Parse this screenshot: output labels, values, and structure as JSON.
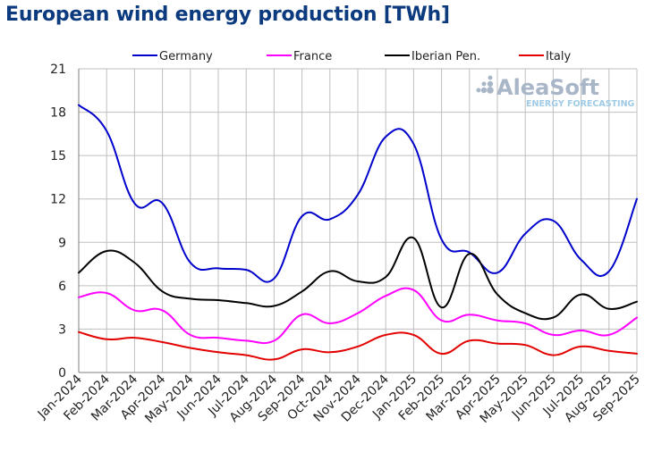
{
  "chart_data": {
    "type": "line",
    "title": "European wind energy production [TWh]",
    "xlabel": "",
    "ylabel": "",
    "ylim": [
      0,
      21
    ],
    "yticks": [
      0,
      3,
      6,
      9,
      12,
      15,
      18,
      21
    ],
    "grid": true,
    "legend_position": "top",
    "categories": [
      "Jan-2024",
      "Feb-2024",
      "Mar-2024",
      "Apr-2024",
      "May-2024",
      "Jun-2024",
      "Jul-2024",
      "Aug-2024",
      "Sep-2024",
      "Oct-2024",
      "Nov-2024",
      "Dec-2024",
      "Jan-2025",
      "Feb-2025",
      "Mar-2025",
      "Apr-2025",
      "May-2025",
      "Jun-2025",
      "Jul-2025",
      "Aug-2025",
      "Sep-2025"
    ],
    "series": [
      {
        "name": "Germany",
        "color": "#0000cc",
        "values": [
          18.5,
          16.7,
          11.7,
          11.7,
          7.6,
          7.2,
          7.1,
          6.5,
          10.8,
          10.6,
          12.3,
          16.3,
          15.8,
          9.2,
          8.3,
          6.9,
          9.6,
          10.5,
          7.8,
          7.0,
          12.0
        ]
      },
      {
        "name": "France",
        "color": "#ff00ff",
        "values": [
          5.2,
          5.5,
          4.3,
          4.3,
          2.6,
          2.4,
          2.2,
          2.2,
          4.0,
          3.4,
          4.1,
          5.3,
          5.7,
          3.6,
          4.0,
          3.6,
          3.4,
          2.6,
          2.9,
          2.6,
          3.8
        ]
      },
      {
        "name": "Iberian Pen.",
        "color": "#000000",
        "values": [
          6.9,
          8.4,
          7.6,
          5.6,
          5.1,
          5.0,
          4.8,
          4.6,
          5.6,
          7.0,
          6.3,
          6.6,
          9.3,
          4.5,
          8.2,
          5.4,
          4.1,
          3.8,
          5.4,
          4.4,
          4.9
        ]
      },
      {
        "name": "Italy",
        "color": "#e30000",
        "values": [
          2.8,
          2.3,
          2.4,
          2.1,
          1.7,
          1.4,
          1.2,
          0.9,
          1.6,
          1.4,
          1.8,
          2.6,
          2.6,
          1.3,
          2.2,
          2.0,
          1.9,
          1.2,
          1.8,
          1.5,
          1.3
        ]
      }
    ]
  },
  "logo": {
    "main": "AleaSoft",
    "sub": "ENERGY FORECASTING",
    "main_color": "#a9b6c8",
    "sub_color": "#9fcbe6"
  }
}
